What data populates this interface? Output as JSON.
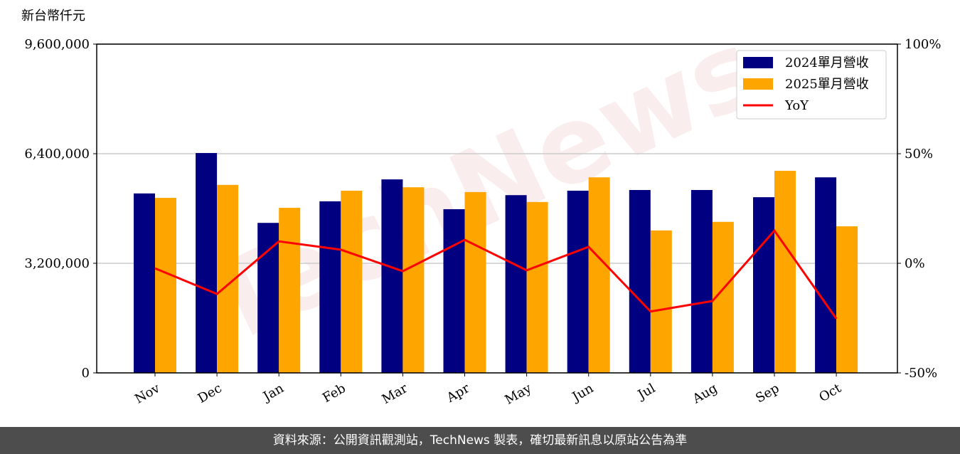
{
  "chart_data": {
    "type": "bar",
    "y_label": "新台幣仟元",
    "watermark": "TechNews",
    "categories": [
      "Nov",
      "Dec",
      "Jan",
      "Feb",
      "Mar",
      "Apr",
      "May",
      "Jun",
      "Jul",
      "Aug",
      "Sep",
      "Oct"
    ],
    "series": [
      {
        "name": "2024單月營收",
        "color": "#000080",
        "values": [
          5240000,
          6420000,
          4380000,
          5010000,
          5650000,
          4780000,
          5190000,
          5320000,
          5340000,
          5340000,
          5130000,
          5710000
        ]
      },
      {
        "name": "2025單月營收",
        "color": "#ffa500",
        "values": [
          5110000,
          5490000,
          4820000,
          5320000,
          5420000,
          5280000,
          4990000,
          5710000,
          4160000,
          4410000,
          5900000,
          4280000
        ]
      },
      {
        "name": "YoY",
        "type": "line",
        "axis": "y2",
        "color": "#ff0000",
        "values": [
          -2.3,
          -14,
          10,
          6.2,
          -3.6,
          10.7,
          -3.2,
          7.5,
          -22,
          -17.2,
          14.9,
          -25.3
        ]
      }
    ],
    "ylim": [
      0,
      9600000
    ],
    "yticks": [
      0,
      {
        "value": 3200000,
        "label": "3,200,000"
      },
      {
        "value": 6400000,
        "label": "6,400,000"
      },
      {
        "value": 9600000,
        "label": "9,600,000"
      }
    ],
    "y2lim": [
      -50,
      100
    ],
    "y2ticks": [
      {
        "value": -50,
        "label": "-50%"
      },
      {
        "value": 0,
        "label": "0%"
      },
      {
        "value": 50,
        "label": "50%"
      },
      {
        "value": 100,
        "label": "100%"
      }
    ],
    "grid": true,
    "legend": "upper right",
    "source": "資料來源：公開資訊觀測站，TechNews 製表，確切最新訊息以原站公告為準"
  }
}
